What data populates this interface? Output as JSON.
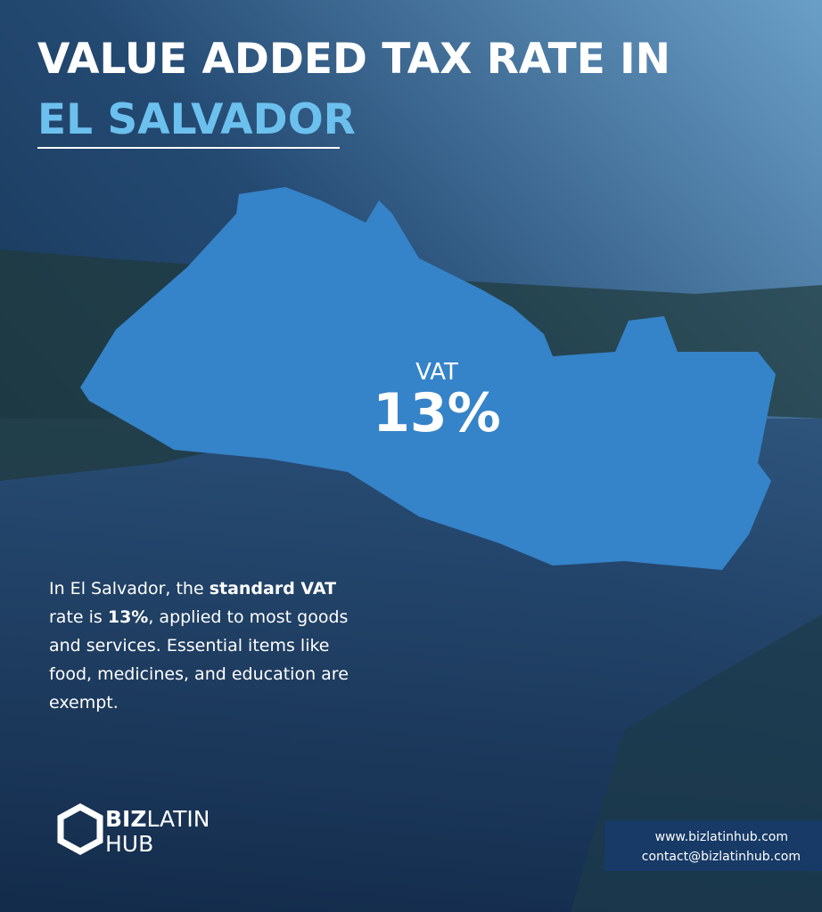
{
  "header": {
    "title_line1": "VALUE ADDED TAX RATE IN",
    "title_line2": "EL SALVADOR"
  },
  "map": {
    "label": "VAT",
    "rate": "13%"
  },
  "body": {
    "lines": [
      [
        {
          "text": "In El Salvador, the "
        },
        {
          "text": "standard VAT",
          "bold": true
        }
      ],
      [
        {
          "text": "rate is "
        },
        {
          "text": "13%",
          "bold": true
        },
        {
          "text": ", applied to most goods"
        }
      ],
      [
        {
          "text": "and services. Essential items like"
        }
      ],
      [
        {
          "text": "food, medicines, and education are"
        }
      ],
      [
        {
          "text": "exempt."
        }
      ]
    ]
  },
  "logo": {
    "part1": "BIZ",
    "part2": "LATIN",
    "part3": "HUB"
  },
  "contact": {
    "website": "www.bizlatinhub.com",
    "email": "contact@bizlatinhub.com"
  }
}
